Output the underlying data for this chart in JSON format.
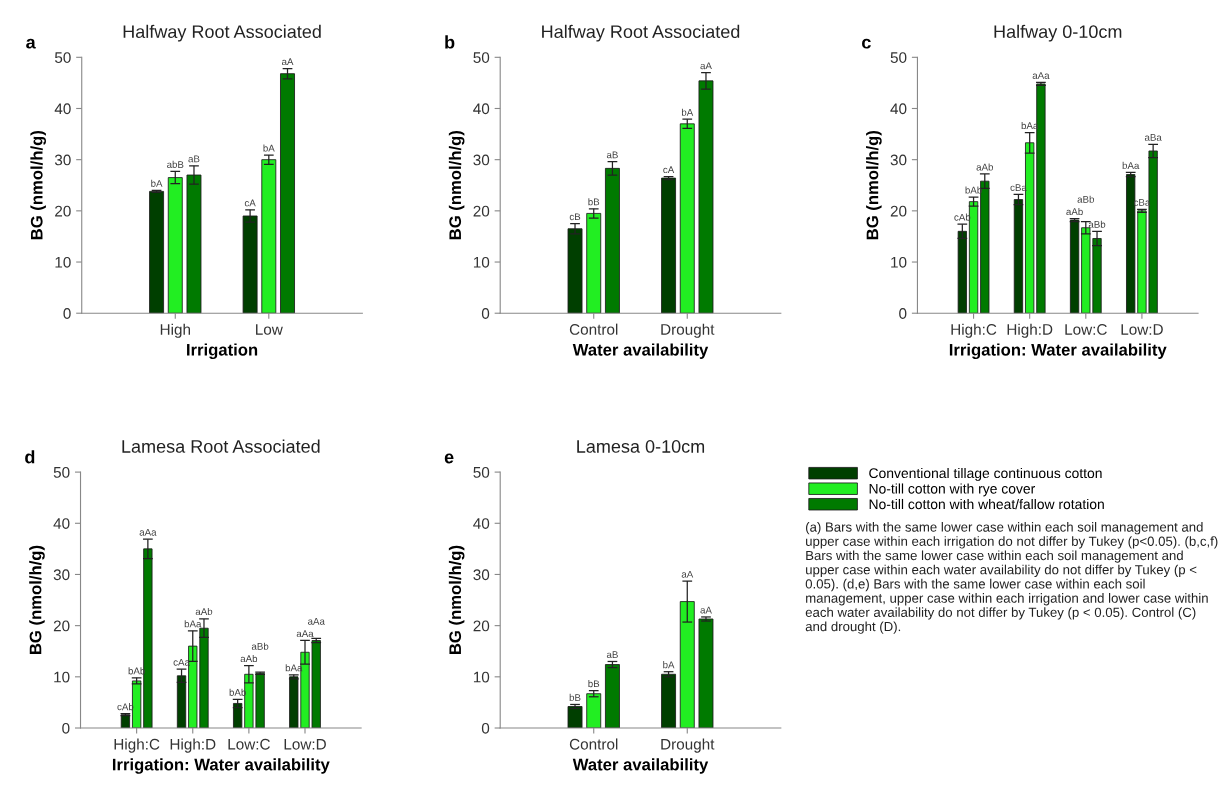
{
  "chart_data": [
    {
      "type": "bar",
      "title": "Halfway Root Associated",
      "xlabel": "Irrigation",
      "ylabel": "BG (nmol/h/g)",
      "annotations": [
        "a"
      ],
      "categories": [
        "High",
        "Low"
      ],
      "ylim": [
        0,
        50
      ],
      "yticks": [
        0,
        10,
        20,
        30,
        40,
        50
      ],
      "grid": false,
      "legend": false,
      "series": [
        {
          "color": "#003f00",
          "values": [
            23.8,
            19.0
          ],
          "errors": [
            0.2,
            1.2
          ],
          "value_labels": [
            "bA",
            "cA"
          ]
        },
        {
          "color": "#22ee22",
          "values": [
            26.5,
            30.0
          ],
          "errors": [
            1.2,
            0.9
          ],
          "value_labels": [
            "abB",
            "bA"
          ]
        },
        {
          "color": "#007a00",
          "values": [
            27.0,
            46.8
          ],
          "errors": [
            1.8,
            1.0
          ],
          "value_labels": [
            "aB",
            "aA"
          ]
        }
      ]
    },
    {
      "type": "bar",
      "title": "Halfway Root Associated",
      "xlabel": "Water availability",
      "ylabel": "BG (nmol/h/g)",
      "annotations": [
        "b"
      ],
      "categories": [
        "Control",
        "Drought"
      ],
      "ylim": [
        0,
        50
      ],
      "yticks": [
        0,
        10,
        20,
        30,
        40,
        50
      ],
      "grid": false,
      "legend": false,
      "series": [
        {
          "color": "#003f00",
          "values": [
            16.5,
            26.4
          ],
          "errors": [
            1.0,
            0.3
          ],
          "value_labels": [
            "cB",
            "cA"
          ]
        },
        {
          "color": "#22ee22",
          "values": [
            19.5,
            37.0
          ],
          "errors": [
            0.9,
            0.9
          ],
          "value_labels": [
            "bB",
            "bA"
          ]
        },
        {
          "color": "#007a00",
          "values": [
            28.3,
            45.4
          ],
          "errors": [
            1.3,
            1.6
          ],
          "value_labels": [
            "aB",
            "aA"
          ]
        }
      ]
    },
    {
      "type": "bar",
      "title": "Halfway 0-10cm",
      "xlabel": "Irrigation: Water availability",
      "ylabel": "BG (nmol/h/g)",
      "annotations": [
        "c"
      ],
      "categories": [
        "High:C",
        "High:D",
        "Low:C",
        "Low:D"
      ],
      "ylim": [
        0,
        50
      ],
      "yticks": [
        0,
        10,
        20,
        30,
        40,
        50
      ],
      "grid": false,
      "legend": false,
      "series": [
        {
          "color": "#003f00",
          "values": [
            16.0,
            22.2,
            18.2,
            27.1
          ],
          "errors": [
            1.4,
            1.0,
            0.3,
            0.4
          ],
          "value_labels": [
            "cAb",
            "cBa",
            "aAb",
            "bAa"
          ]
        },
        {
          "color": "#22ee22",
          "values": [
            21.8,
            33.3,
            16.7,
            20.0
          ],
          "errors": [
            0.9,
            2.0,
            1.2,
            0.3
          ],
          "value_labels": [
            "bAb",
            "bAa",
            "aBb",
            "cBa"
          ]
        },
        {
          "color": "#007a00",
          "values": [
            25.8,
            44.8,
            14.6,
            31.7
          ],
          "errors": [
            1.4,
            0.3,
            1.4,
            1.3
          ],
          "value_labels": [
            "aAb",
            "aAa",
            "aBb",
            "aBa"
          ]
        }
      ]
    },
    {
      "type": "bar",
      "title": "Lamesa Root Associated",
      "xlabel": "Irrigation: Water availability",
      "ylabel": "BG (nmol/h/g)",
      "annotations": [
        "d"
      ],
      "categories": [
        "High:C",
        "High:D",
        "Low:C",
        "Low:D"
      ],
      "ylim": [
        0,
        50
      ],
      "yticks": [
        0,
        10,
        20,
        30,
        40,
        50
      ],
      "grid": false,
      "legend": false,
      "series": [
        {
          "color": "#003f00",
          "values": [
            2.6,
            10.2,
            4.8,
            10.0
          ],
          "errors": [
            0.2,
            1.3,
            0.8,
            0.4
          ],
          "value_labels": [
            "cAb",
            "cAa",
            "bAb",
            "bAa"
          ]
        },
        {
          "color": "#22ee22",
          "values": [
            9.2,
            16.0,
            10.5,
            14.8
          ],
          "errors": [
            0.6,
            3.0,
            1.7,
            2.3
          ],
          "value_labels": [
            "bAb",
            "bAa",
            "aAb",
            "aAa"
          ]
        },
        {
          "color": "#007a00",
          "values": [
            35.0,
            19.5,
            10.7,
            17.1
          ],
          "errors": [
            1.9,
            1.8,
            0.2,
            0.4
          ],
          "value_labels": [
            "aAa",
            "aAb",
            "aBb",
            "aAa"
          ]
        }
      ]
    },
    {
      "type": "bar",
      "title": "Lamesa 0-10cm",
      "xlabel": "Water availability",
      "ylabel": "BG (nmol/h/g)",
      "annotations": [
        "e",
        "(a) Bars with the same lower case within each soil management and upper case within each irrigation do not differ by Tukey (p<0.05). (b,c,f) Bars with the same lower case within each soil management and upper case within each water availability do not differ by Tukey (p < 0.05). (d,e) Bars with the same lower case within each soil management, upper case within each irrigation and lower case within each water availability do not differ by Tukey (p < 0.05). Control (C) and drought (D)."
      ],
      "categories": [
        "Control",
        "Drought"
      ],
      "ylim": [
        0,
        50
      ],
      "yticks": [
        0,
        10,
        20,
        30,
        40,
        50
      ],
      "grid": false,
      "legend": "right",
      "series": [
        {
          "name": "Conventional tillage continuous cotton",
          "color": "#003f00",
          "values": [
            4.2,
            10.5
          ],
          "errors": [
            0.4,
            0.5
          ],
          "value_labels": [
            "bB",
            "bA"
          ]
        },
        {
          "name": "No-till cotton with rye cover",
          "color": "#22ee22",
          "values": [
            6.7,
            24.7
          ],
          "errors": [
            0.6,
            4.0
          ],
          "value_labels": [
            "bB",
            "aA"
          ]
        },
        {
          "name": "No-till cotton with wheat/fallow rotation",
          "color": "#007a00",
          "values": [
            12.4,
            21.3
          ],
          "errors": [
            0.6,
            0.4
          ],
          "value_labels": [
            "aB",
            "aA"
          ]
        }
      ]
    }
  ]
}
